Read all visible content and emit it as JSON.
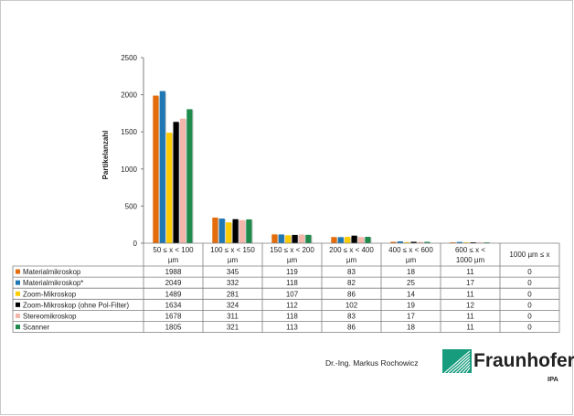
{
  "chart_data": {
    "type": "bar",
    "ylabel": "Partikelanzahl",
    "ylim": [
      0,
      2500
    ],
    "yticks": [
      0,
      500,
      1000,
      1500,
      2000,
      2500
    ],
    "grid": false,
    "legend": "table-below",
    "categories": [
      [
        "50 ≤ x < 100",
        "µm"
      ],
      [
        "100 ≤ x < 150",
        "µm"
      ],
      [
        "150 ≤ x < 200",
        "µm"
      ],
      [
        "200 ≤ x < 400",
        "µm"
      ],
      [
        "400 ≤ x < 600",
        "µm"
      ],
      [
        "600 ≤ x <",
        "1000 µm"
      ],
      [
        "1000 µm ≤ x"
      ]
    ],
    "series": [
      {
        "name": "Materialmikroskop",
        "color": "#E46C0A",
        "values": [
          1988,
          345,
          119,
          83,
          18,
          11,
          0
        ]
      },
      {
        "name": "Materialmikroskop*",
        "color": "#1F77B4",
        "values": [
          2049,
          332,
          118,
          82,
          25,
          17,
          0
        ]
      },
      {
        "name": "Zoom-Mikroskop",
        "color": "#FFCC00",
        "values": [
          1489,
          281,
          107,
          86,
          14,
          11,
          0
        ]
      },
      {
        "name": "Zoom-Mikroskop (ohne Pol-Filter)",
        "color": "#000000",
        "values": [
          1634,
          324,
          112,
          102,
          19,
          12,
          0
        ]
      },
      {
        "name": "Stereomikroskop",
        "color": "#F4B6AA",
        "values": [
          1678,
          311,
          118,
          83,
          17,
          11,
          0
        ]
      },
      {
        "name": "Scanner",
        "color": "#1E8A4C",
        "values": [
          1805,
          321,
          113,
          86,
          18,
          11,
          0
        ]
      }
    ]
  },
  "footer": {
    "author": "Dr.-Ing. Markus Rochowicz",
    "logo_name": "Fraunhofer",
    "logo_sub": "IPA",
    "logo_color": "#179C7D"
  }
}
